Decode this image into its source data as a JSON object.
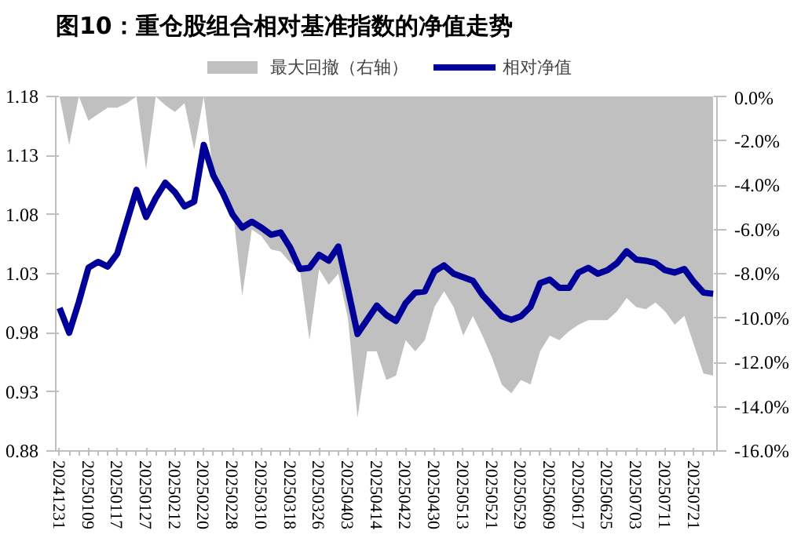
{
  "chart_data": {
    "type": "line",
    "title": "图10：重仓股组合相对基准指数的净值走势",
    "categories": [
      "20241231",
      null,
      null,
      "20250109",
      null,
      null,
      "20250117",
      null,
      null,
      "20250127",
      null,
      null,
      "20250212",
      null,
      null,
      "20250220",
      null,
      null,
      "20250228",
      null,
      null,
      "20250310",
      null,
      null,
      "20250318",
      null,
      null,
      "20250326",
      null,
      null,
      "20250403",
      null,
      null,
      "20250414",
      null,
      null,
      "20250422",
      null,
      null,
      "20250430",
      null,
      null,
      "20250513",
      null,
      null,
      "20250521",
      null,
      null,
      "20250529",
      null,
      null,
      "20250609",
      null,
      null,
      "20250617",
      null,
      null,
      "20250625",
      null,
      null,
      "20250703",
      null,
      null,
      "20250711",
      null,
      null,
      "20250721",
      null,
      null
    ],
    "series": [
      {
        "name": "最大回撤（右轴）",
        "type": "area",
        "axis": "y2",
        "color": "#c0c0c0",
        "values": [
          0,
          -2.2,
          0,
          -1.1,
          -0.8,
          -0.5,
          -0.5,
          -0.3,
          0,
          -3.3,
          0,
          -0.4,
          -0.7,
          -0.3,
          -2.4,
          0,
          -3.5,
          -4.7,
          -5.0,
          -9.0,
          -6.0,
          -6.3,
          -6.9,
          -7.0,
          -7.5,
          -7.8,
          -11.0,
          -7.8,
          -8.5,
          -8.0,
          -10.0,
          -14.5,
          -11.5,
          -11.5,
          -12.8,
          -12.6,
          -11.0,
          -11.5,
          -11.0,
          -9.5,
          -8.8,
          -9.5,
          -10.8,
          -9.9,
          -10.8,
          -11.8,
          -13.0,
          -13.4,
          -12.8,
          -13.0,
          -11.5,
          -10.8,
          -11.0,
          -10.6,
          -10.3,
          -10.1,
          -10.1,
          -10.1,
          -9.7,
          -9.1,
          -9.5,
          -9.6,
          -9.3,
          -9.7,
          -10.3,
          -9.9,
          -11.2,
          -12.5,
          -12.6
        ]
      },
      {
        "name": "相对净值",
        "color": "#000099",
        "values": [
          1.001,
          0.98,
          1.006,
          1.035,
          1.04,
          1.036,
          1.047,
          1.074,
          1.101,
          1.078,
          1.094,
          1.107,
          1.099,
          1.087,
          1.091,
          1.139,
          1.113,
          1.098,
          1.08,
          1.069,
          1.074,
          1.069,
          1.063,
          1.065,
          1.052,
          1.034,
          1.035,
          1.046,
          1.041,
          1.053,
          1.017,
          0.979,
          0.991,
          1.003,
          0.995,
          0.99,
          1.005,
          1.014,
          1.015,
          1.032,
          1.037,
          1.03,
          1.027,
          1.024,
          1.012,
          1.003,
          0.994,
          0.991,
          0.994,
          1.002,
          1.022,
          1.025,
          1.018,
          1.018,
          1.031,
          1.035,
          1.03,
          1.033,
          1.039,
          1.049,
          1.042,
          1.041,
          1.039,
          1.033,
          1.031,
          1.034,
          1.023,
          1.014,
          1.013
        ]
      }
    ],
    "ylim": [
      0.88,
      1.18
    ],
    "yticks": [
      0.88,
      0.93,
      0.98,
      1.03,
      1.08,
      1.13,
      1.18
    ],
    "y2lim": [
      -16,
      0
    ],
    "y2ticks": [
      {
        "value": -16,
        "label": "-16.0%"
      },
      {
        "value": -14,
        "label": "-14.0%"
      },
      {
        "value": -12,
        "label": "-12.0%"
      },
      {
        "value": -10,
        "label": "-10.0%"
      },
      {
        "value": -8,
        "label": "-8.0%"
      },
      {
        "value": -6,
        "label": "-6.0%"
      },
      {
        "value": -4,
        "label": "-4.0%"
      },
      {
        "value": -2,
        "label": "-2.0%"
      },
      {
        "value": 0,
        "label": "0.0%"
      }
    ],
    "legend": "top"
  }
}
